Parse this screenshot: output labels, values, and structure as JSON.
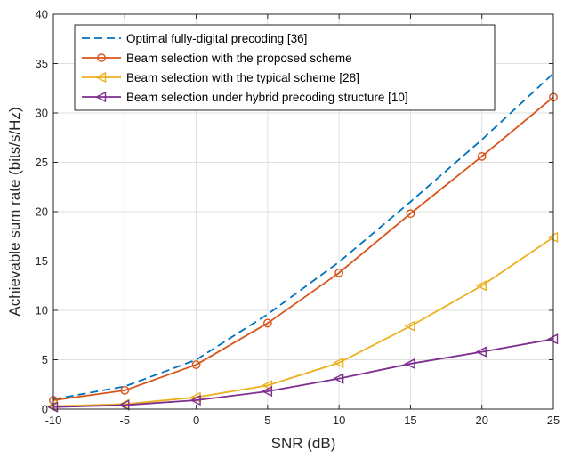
{
  "chart_data": {
    "type": "line",
    "title": "",
    "xlabel": "SNR (dB)",
    "ylabel": "Achievable sum rate (bits/s/Hz)",
    "xlim": [
      -10,
      25
    ],
    "ylim": [
      0,
      40
    ],
    "x": [
      -10,
      -5,
      0,
      5,
      10,
      15,
      20,
      25
    ],
    "xticks": [
      "-10",
      "-5",
      "0",
      "5",
      "10",
      "15",
      "20",
      "25"
    ],
    "yticks": [
      "0",
      "5",
      "10",
      "15",
      "20",
      "25",
      "30",
      "35",
      "40"
    ],
    "grid": true,
    "legend_position": "top-left",
    "series": [
      {
        "name": "Optimal fully-digital precoding [36]",
        "values": [
          1.0,
          2.3,
          5.0,
          9.6,
          14.9,
          21.0,
          27.3,
          34.0
        ],
        "color": "#0072BD",
        "style": "dashed",
        "marker": "none"
      },
      {
        "name": "Beam selection with the proposed scheme",
        "values": [
          0.9,
          1.9,
          4.5,
          8.7,
          13.8,
          19.8,
          25.6,
          31.6
        ],
        "color": "#D95319",
        "style": "solid",
        "marker": "circle"
      },
      {
        "name": "Beam selection with the typical scheme [28]",
        "values": [
          0.3,
          0.5,
          1.2,
          2.4,
          4.7,
          8.4,
          12.5,
          17.4
        ],
        "color": "#EDB120",
        "style": "solid",
        "marker": "triangle-left"
      },
      {
        "name": "Beam selection under hybrid precoding structure [10]",
        "values": [
          0.2,
          0.4,
          0.9,
          1.8,
          3.1,
          4.6,
          5.8,
          7.1
        ],
        "color": "#7E2F8E",
        "style": "solid",
        "marker": "triangle-left"
      }
    ]
  }
}
